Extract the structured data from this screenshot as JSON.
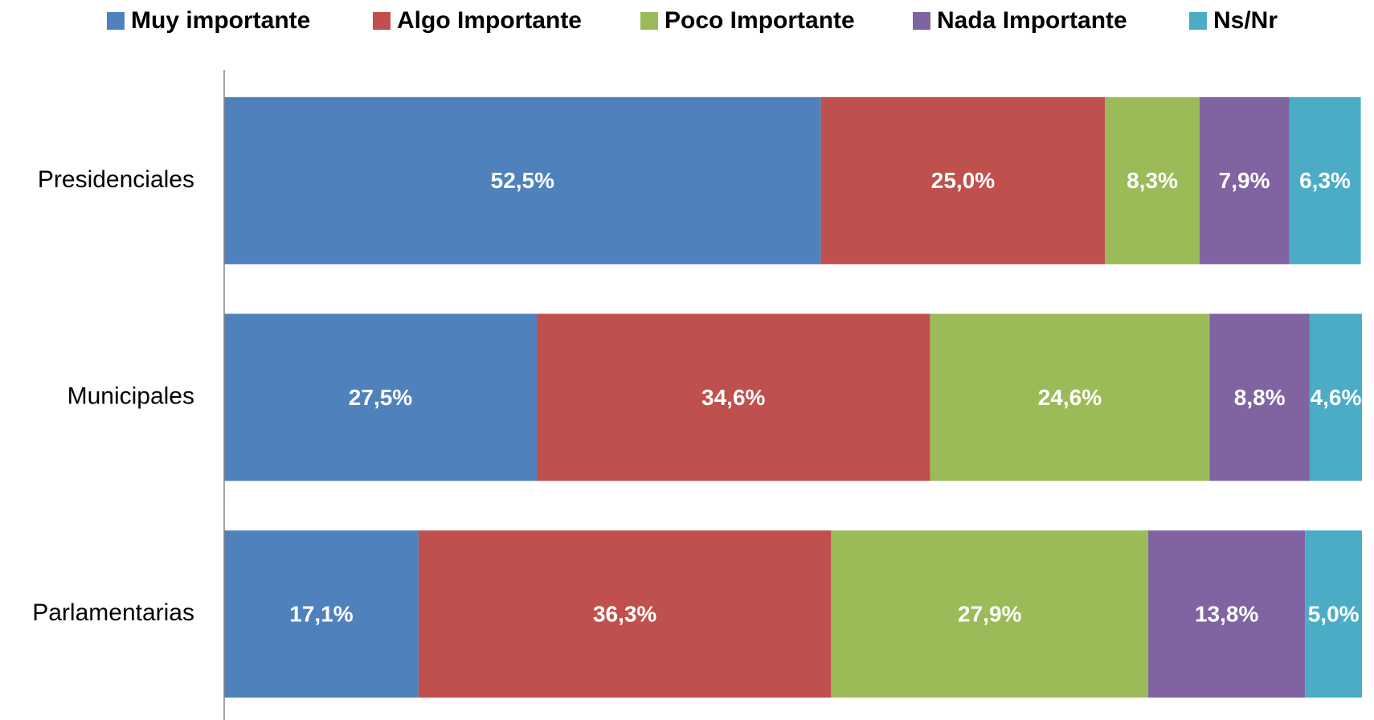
{
  "chart_data": {
    "type": "stacked-barh",
    "categories": [
      "Presidenciales",
      "Municipales",
      "Parlamentarias"
    ],
    "series": [
      {
        "name": "Muy importante",
        "color": "#4f81bd",
        "values": [
          52.5,
          27.5,
          17.1
        ],
        "value_labels": [
          "52,5%",
          "27,5%",
          "17,1%"
        ]
      },
      {
        "name": "Algo Importante",
        "color": "#c0504d",
        "values": [
          25.0,
          34.6,
          36.3
        ],
        "value_labels": [
          "25,0%",
          "34,6%",
          "36,3%"
        ]
      },
      {
        "name": "Poco Importante",
        "color": "#9bbb59",
        "values": [
          8.3,
          24.6,
          27.9
        ],
        "value_labels": [
          "8,3%",
          "24,6%",
          "27,9%"
        ]
      },
      {
        "name": "Nada Importante",
        "color": "#8064a2",
        "values": [
          7.9,
          8.8,
          13.8
        ],
        "value_labels": [
          "7,9%",
          "8,8%",
          "13,8%"
        ]
      },
      {
        "name": "Ns/Nr",
        "color": "#4bacc6",
        "values": [
          6.3,
          4.6,
          5.0
        ],
        "value_labels": [
          "6,3%",
          "4,6%",
          "5,0%"
        ]
      }
    ],
    "legend": "top"
  }
}
